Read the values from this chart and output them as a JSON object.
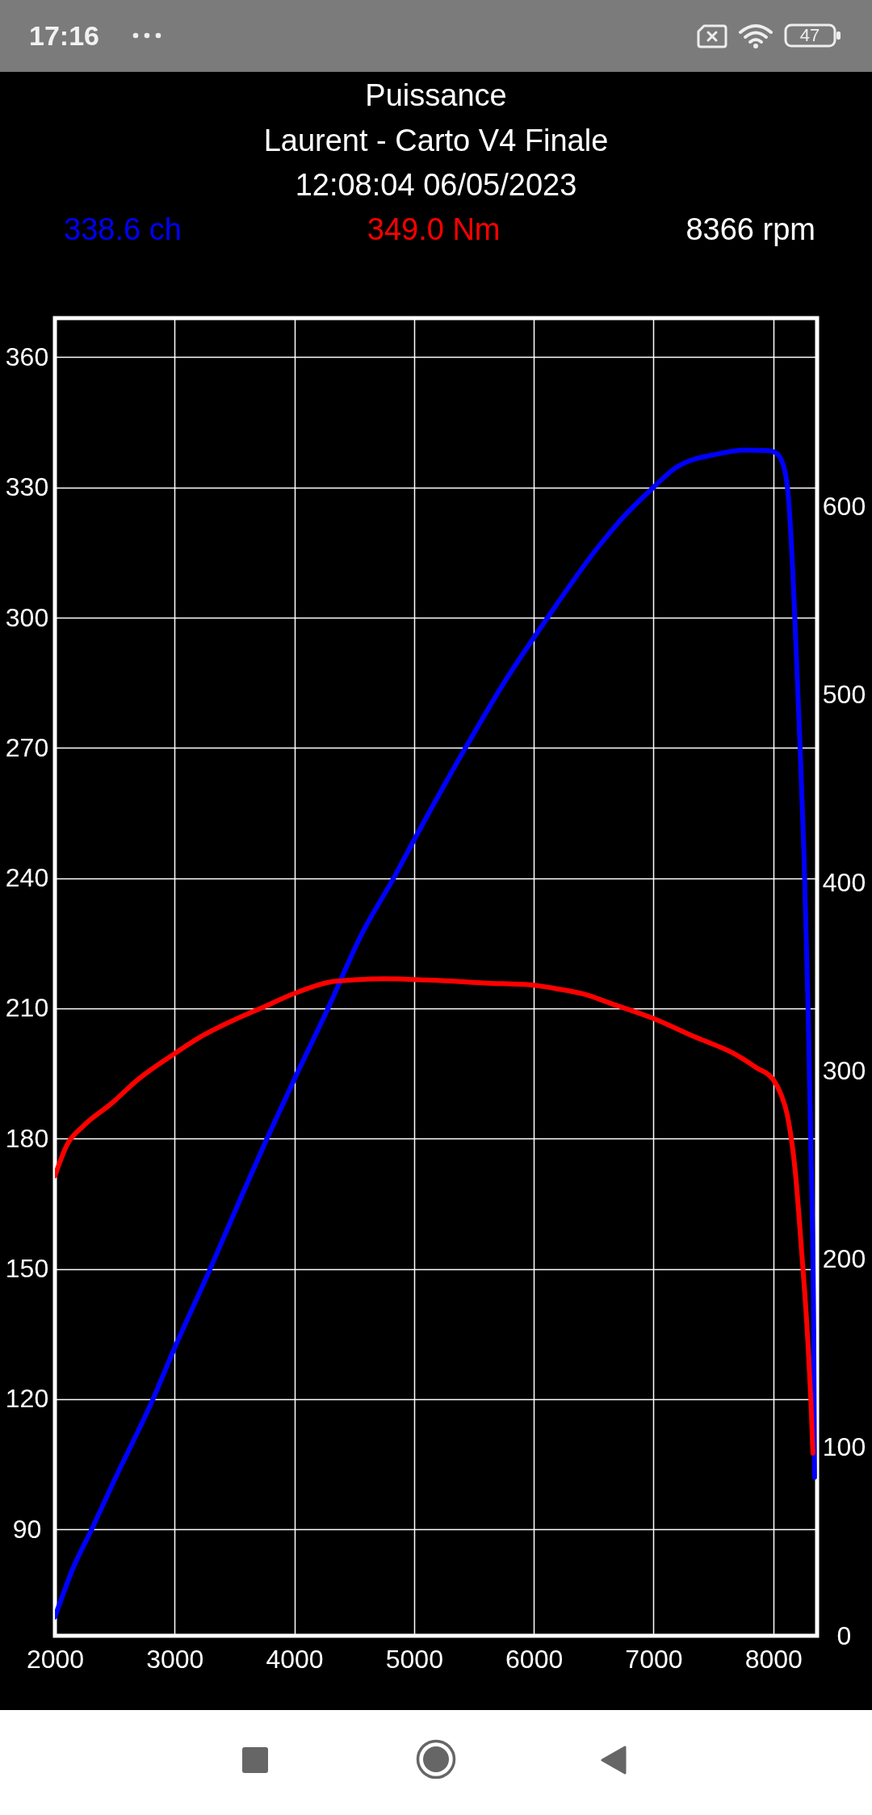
{
  "chart_data": {
    "type": "line",
    "title": "Puissance",
    "subtitle": "Laurent - Carto V4 Finale",
    "annotations": [
      "12:08:04 06/05/2023",
      "8366 rpm",
      "17:16",
      "47"
    ],
    "series": [
      {
        "name": "338.6 ch",
        "color": "#0000ff",
        "x": [
          2000,
          2146,
          2307,
          2493,
          2819,
          3000,
          3297,
          3539,
          3771,
          4000,
          4281,
          4560,
          4829,
          5000,
          5433,
          5744,
          6115,
          6510,
          6742,
          6998,
          7183,
          7532,
          7760,
          7949,
          8015,
          8082,
          8129,
          8170,
          8217,
          8257,
          8291,
          8318,
          8338,
          8345
        ],
        "values": [
          69.8,
          80.7,
          90,
          101.1,
          120,
          131.8,
          150,
          165.5,
          180,
          193.7,
          210,
          227,
          240,
          248.8,
          270.2,
          284.7,
          300,
          315.3,
          323,
          330,
          334.5,
          337.7,
          338.6,
          338.5,
          338.1,
          335.3,
          326.9,
          306.5,
          274.9,
          245.1,
          209.8,
          172.6,
          135.5,
          102
        ]
      },
      {
        "name": "349.0 Nm",
        "color": "#ff0000",
        "axis": "y2",
        "x": [
          2000,
          2099,
          2239,
          2471,
          2703,
          3000,
          3214,
          3492,
          3724,
          4000,
          4328,
          4607,
          4750,
          4885,
          5000,
          5257,
          5581,
          6000,
          6185,
          6417,
          6649,
          7000,
          7346,
          7671,
          7857,
          8000,
          8062,
          8116,
          8183,
          8237,
          8284,
          8318,
          8331
        ],
        "values": [
          244.3,
          260.5,
          270.9,
          282.7,
          296,
          309.3,
          318.1,
          327,
          333.5,
          341.2,
          347.6,
          348.8,
          349,
          348.9,
          348.6,
          348,
          346.8,
          345.6,
          343.8,
          340.9,
          335.8,
          327.9,
          318.1,
          309.3,
          301.9,
          295.4,
          288,
          277,
          247,
          204,
          161.5,
          118.6,
          97
        ]
      }
    ],
    "xlim": [
      2000,
      8366
    ],
    "xticks": [
      2000,
      3000,
      4000,
      5000,
      6000,
      7000,
      8000
    ],
    "ylim": [
      65.5,
      369
    ],
    "yticks": [
      90,
      120,
      150,
      180,
      210,
      240,
      270,
      300,
      330,
      360
    ],
    "y2lim": [
      0,
      700
    ],
    "y2ticks": [
      0,
      100,
      200,
      300,
      400,
      500,
      600
    ],
    "grid": true,
    "legend": "top"
  }
}
